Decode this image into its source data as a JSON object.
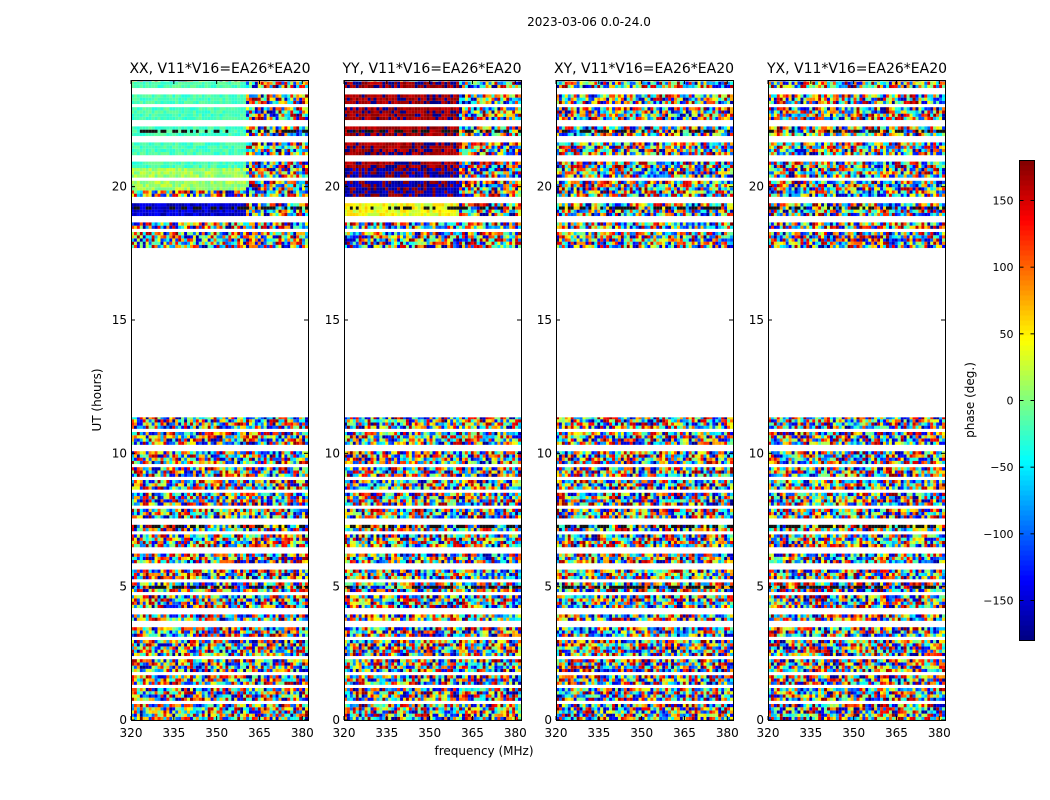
{
  "figure_title": "2023-03-06 0.0-24.0",
  "colors": {
    "frame": "#000000",
    "background": "#ffffff",
    "blank_rows": "#ffffff"
  },
  "colormap": "jet",
  "chart_data": {
    "type": "heatmap",
    "suptitle": "2023-03-06 0.0-24.0",
    "xlabel": "frequency (MHz)",
    "ylabel": "UT (hours)",
    "xlim": [
      320,
      382
    ],
    "ylim": [
      0,
      24
    ],
    "xticks": [
      320,
      335,
      350,
      365,
      380
    ],
    "yticks": [
      0,
      5,
      10,
      15,
      20
    ],
    "colorbar": {
      "label": "phase (deg.)",
      "range": [
        -180,
        180
      ],
      "ticks": [
        -150,
        -100,
        -50,
        0,
        50,
        100,
        150
      ]
    },
    "panels": [
      {
        "title": "XX, V11*V16=EA26*EA20",
        "pol": "XX",
        "segments": [
          {
            "t0": 0,
            "t1": 11.35,
            "phase": "random"
          },
          {
            "t0": 17.7,
            "t1": 23.95,
            "phase": "random"
          }
        ],
        "structured_blocks": [
          {
            "t0": 20.7,
            "t1": 23.9,
            "f0": 320,
            "f1": 360,
            "mean_deg": -20,
            "spread_deg": 15
          },
          {
            "t0": 19.8,
            "t1": 20.7,
            "f0": 320,
            "f1": 360,
            "mean_deg": 10,
            "spread_deg": 20
          },
          {
            "t0": 18.8,
            "t1": 19.4,
            "f0": 320,
            "f1": 360,
            "mean_deg": -150,
            "spread_deg": 20
          }
        ]
      },
      {
        "title": "YY, V11*V16=EA26*EA20",
        "pol": "YY",
        "segments": [
          {
            "t0": 0,
            "t1": 11.35,
            "phase": "random"
          },
          {
            "t0": 17.7,
            "t1": 23.95,
            "phase": "random"
          }
        ],
        "structured_blocks": [
          {
            "t0": 20.7,
            "t1": 23.9,
            "f0": 320,
            "f1": 360,
            "mean_deg": 170,
            "spread_deg": 20
          },
          {
            "t0": 19.4,
            "t1": 20.7,
            "f0": 320,
            "f1": 360,
            "mean_deg": -170,
            "spread_deg": 25
          },
          {
            "t0": 18.8,
            "t1": 19.4,
            "f0": 320,
            "f1": 360,
            "mean_deg": 40,
            "spread_deg": 25
          }
        ]
      },
      {
        "title": "XY, V11*V16=EA26*EA20",
        "pol": "XY",
        "segments": [
          {
            "t0": 0,
            "t1": 11.35,
            "phase": "random"
          },
          {
            "t0": 17.7,
            "t1": 23.95,
            "phase": "random"
          }
        ],
        "structured_blocks": []
      },
      {
        "title": "YX, V11*V16=EA26*EA20",
        "pol": "YX",
        "segments": [
          {
            "t0": 0,
            "t1": 11.35,
            "phase": "random"
          },
          {
            "t0": 17.7,
            "t1": 23.95,
            "phase": "random"
          }
        ],
        "structured_blocks": []
      }
    ],
    "flagged_rows_ut": [
      0.6,
      1.2,
      1.7,
      2.3,
      3.0,
      3.55,
      4.0,
      4.7,
      5.15,
      5.7,
      6.3,
      6.95,
      7.4,
      7.9,
      8.5,
      9.0,
      9.5,
      10.15,
      10.8,
      18.3,
      18.75,
      19.45,
      20.2,
      21.0,
      21.7,
      22.3,
      23.0,
      23.55
    ],
    "dark_rows_ut": [
      1.7,
      4.0,
      4.9,
      5.2,
      7.2,
      10.2,
      19.1,
      20.9,
      22.0
    ]
  }
}
